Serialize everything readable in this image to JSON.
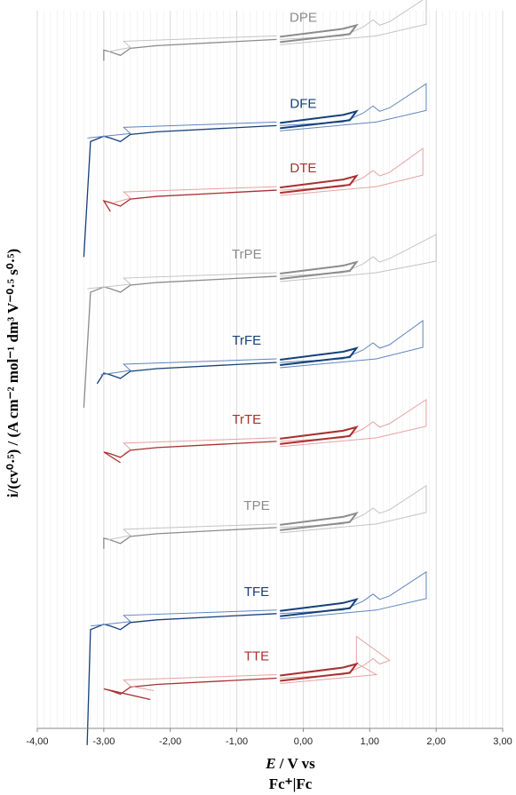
{
  "chart_data": {
    "type": "line",
    "title": "",
    "xlabel_parts": [
      "E",
      " / V vs"
    ],
    "xlabel_line2": "Fc⁺|Fc",
    "ylabel": "i/(cv⁰·⁵) / (A cm⁻² mol⁻¹ dm³ V⁻⁰·⁵ s⁰·⁵)",
    "xlim": [
      -4.0,
      3.0
    ],
    "x_ticks": [
      "-4,00",
      "-3,00",
      "-2,00",
      "-1,00",
      "0,00",
      "1,00",
      "2,00",
      "3,00"
    ],
    "grid": "vertical",
    "legend": "none",
    "colors": {
      "gray": "#8c8c8c",
      "navy": "#16407a",
      "red": "#a93030",
      "lightgray": "#c4c4c4",
      "lightnavy": "#5f86bd",
      "pink": "#e8a2a2"
    },
    "series": [
      {
        "name": "DPE",
        "color": "gray",
        "level": 95,
        "x_min": -3.0,
        "x_max": 1.85,
        "label_x": 0.0
      },
      {
        "name": "DFE",
        "color": "navy",
        "level": 83,
        "x_min": -3.3,
        "x_max": 1.85,
        "label_x": 0.0
      },
      {
        "name": "DTE",
        "color": "red",
        "level": 74,
        "x_min": -2.9,
        "x_max": 1.8,
        "label_x": 0.0
      },
      {
        "name": "TrPE",
        "color": "gray",
        "level": 62,
        "x_min": -3.3,
        "x_max": 2.0,
        "label_x": -0.85
      },
      {
        "name": "TrFE",
        "color": "navy",
        "level": 50,
        "x_min": -3.1,
        "x_max": 1.8,
        "label_x": -0.85
      },
      {
        "name": "TrTE",
        "color": "red",
        "level": 39,
        "x_min": -2.75,
        "x_max": 1.85,
        "label_x": -0.85
      },
      {
        "name": "TPE",
        "color": "gray",
        "level": 27,
        "x_min": -3.0,
        "x_max": 1.85,
        "label_x": -0.7
      },
      {
        "name": "TFE",
        "color": "navy",
        "level": 15,
        "x_min": -3.25,
        "x_max": 1.85,
        "label_x": -0.7
      },
      {
        "name": "TTE",
        "color": "red",
        "level": 6,
        "x_min": -2.3,
        "x_max": 0.8,
        "label_x": -0.7
      }
    ]
  }
}
